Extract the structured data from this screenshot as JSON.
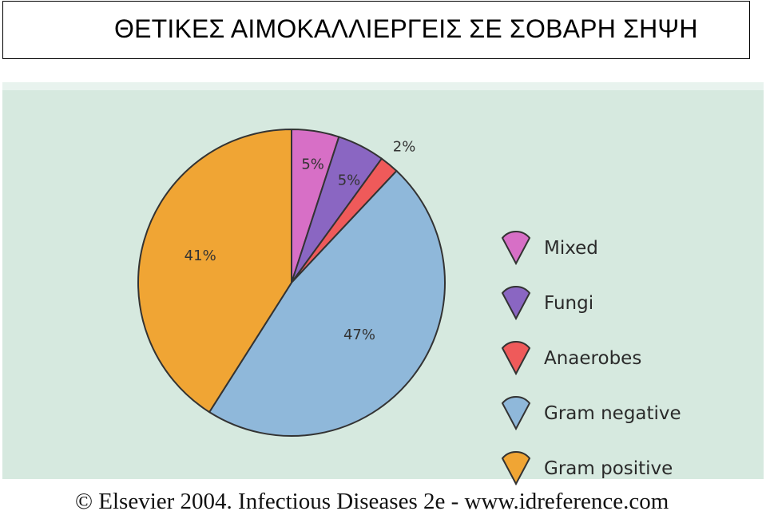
{
  "title": "ΘΕΤΙΚΕΣ ΑΙΜΟΚΑΛΛΙΕΡΓΕΙΣ ΣΕ ΣΟΒΑΡΗ ΣΗΨΗ",
  "footer": "© Elsevier 2004. Infectious Diseases 2e - www.idreference.com",
  "colors": {
    "background": "#d6e9df",
    "outline": "#333333"
  },
  "chart_data": {
    "type": "pie",
    "title": "",
    "legend_position": "right",
    "slices": [
      {
        "name": "Mixed",
        "value": 5,
        "label": "5%",
        "color": "#d76fc6"
      },
      {
        "name": "Fungi",
        "value": 5,
        "label": "5%",
        "color": "#8a66c2"
      },
      {
        "name": "Anaerobes",
        "value": 2,
        "label": "2%",
        "color": "#ef5a5a"
      },
      {
        "name": "Gram negative",
        "value": 47,
        "label": "47%",
        "color": "#8fb8da"
      },
      {
        "name": "Gram positive",
        "value": 41,
        "label": "41%",
        "color": "#f0a534"
      }
    ]
  }
}
